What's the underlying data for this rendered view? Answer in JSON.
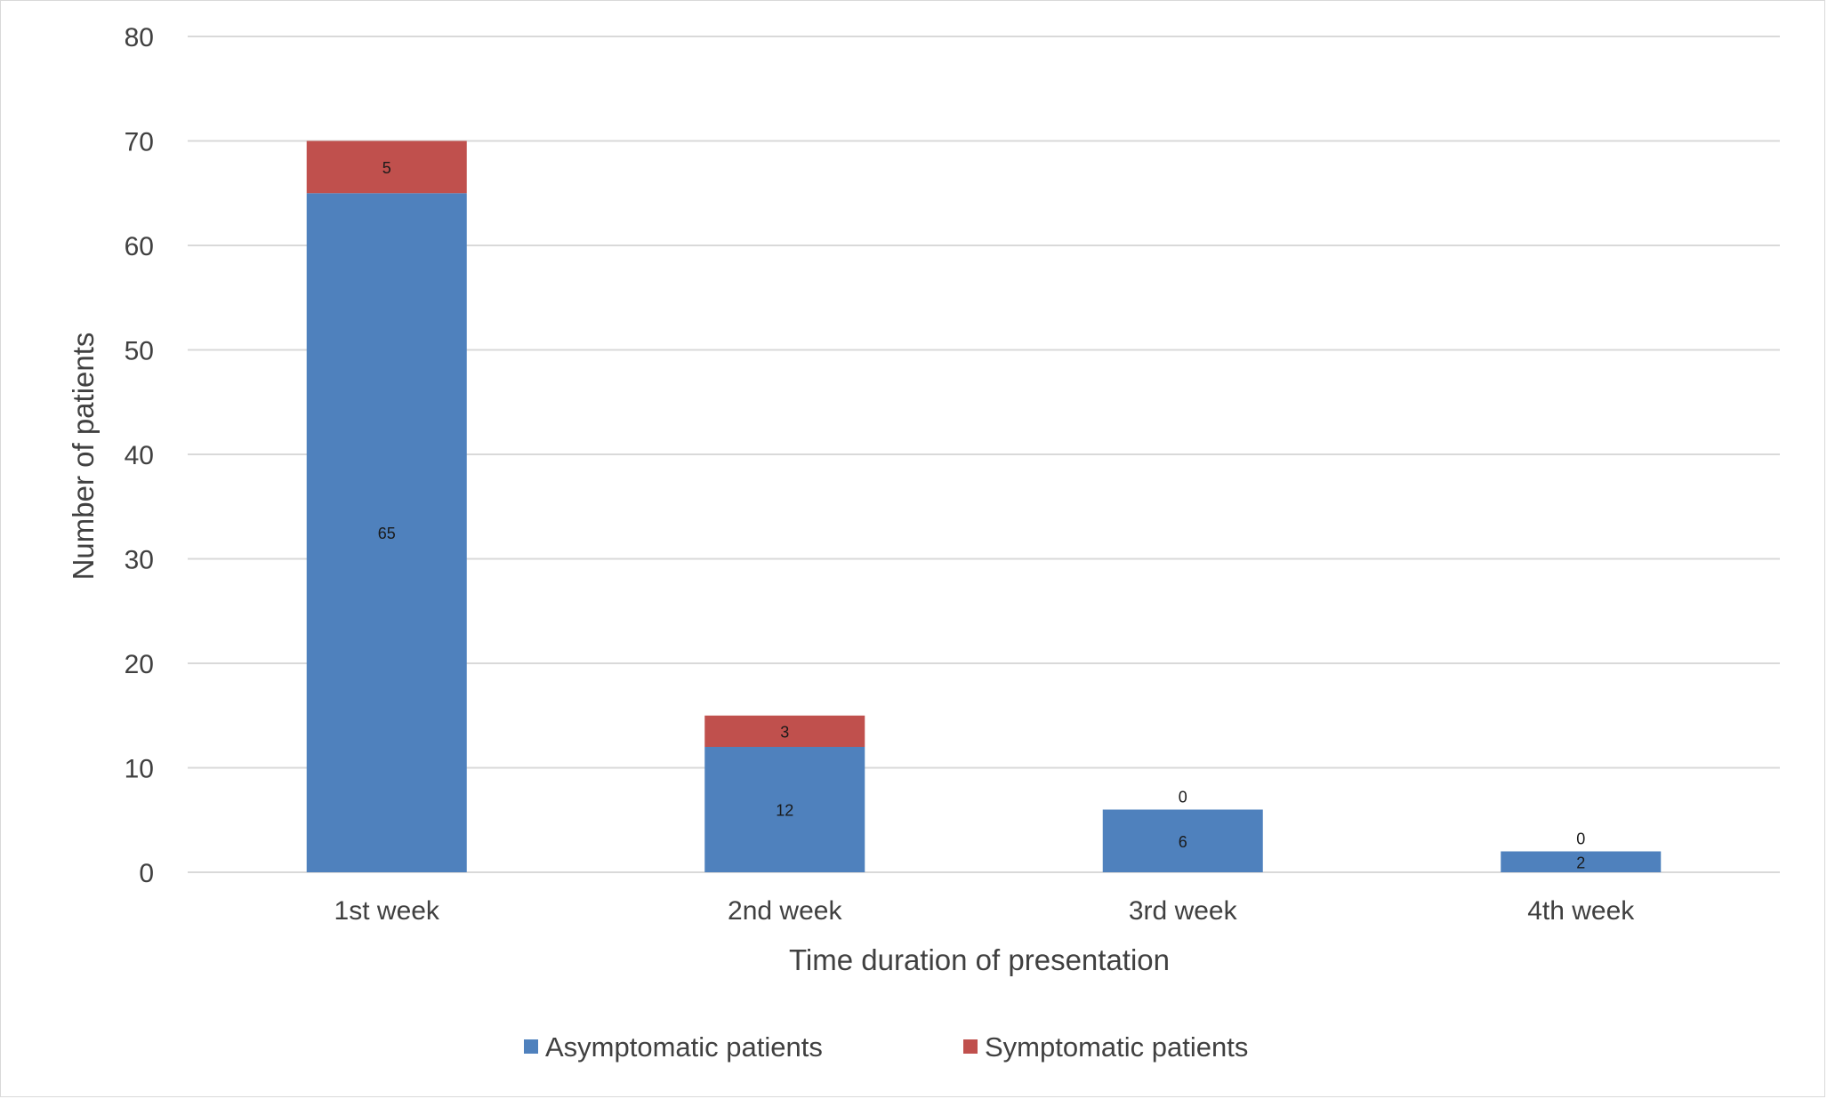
{
  "chart_data": {
    "type": "bar",
    "stacked": true,
    "title": "",
    "xlabel": "Time duration of presentation",
    "ylabel": "Number of patients",
    "ylim": [
      0,
      80
    ],
    "yticks": [
      0,
      10,
      20,
      30,
      40,
      50,
      60,
      70,
      80
    ],
    "categories": [
      "1st week",
      "2nd week",
      "3rd week",
      "4th week"
    ],
    "series": [
      {
        "name": "Asymptomatic patients",
        "values": [
          65,
          12,
          6,
          2
        ],
        "color": "#4f81bd"
      },
      {
        "name": "Symptomatic patients",
        "values": [
          5,
          3,
          0,
          0
        ],
        "color": "#c0504d"
      }
    ],
    "grid": true,
    "legend_position": "bottom"
  }
}
